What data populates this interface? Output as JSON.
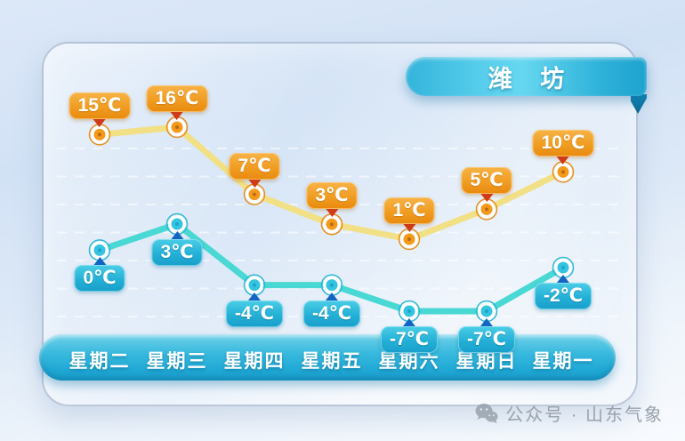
{
  "header": {
    "title": "潍 坊"
  },
  "chart_data": {
    "type": "line",
    "categories": [
      "星期二",
      "星期三",
      "星期四",
      "星期五",
      "星期六",
      "星期日",
      "星期一"
    ],
    "series": [
      {
        "name": "high-temperature",
        "values": [
          15,
          16,
          7,
          3,
          1,
          5,
          10
        ],
        "labels": [
          "15℃",
          "16℃",
          "7℃",
          "3℃",
          "1℃",
          "5℃",
          "10℃"
        ],
        "line_color": "#f2e086",
        "marker_color": "#f39a1d",
        "marker_dot_color": "#bb6a10",
        "marker_ring_color": "#e8901c",
        "label_style": "high"
      },
      {
        "name": "low-temperature",
        "values": [
          0,
          3,
          -4,
          -4,
          -7,
          -7,
          -2
        ],
        "labels": [
          "0℃",
          "3℃",
          "-4℃",
          "-4℃",
          "-7℃",
          "-7℃",
          "-2℃"
        ],
        "line_color": "#49d8d4",
        "marker_color": "#35c4e0",
        "marker_dot_color": "#1da5cc",
        "marker_ring_color": "#2eb8d8",
        "label_style": "low"
      }
    ],
    "unit": "℃",
    "grid": "dashed-horizontal",
    "legend": "none",
    "title": "潍 坊"
  },
  "footer": {
    "wechat_text": "公众号 · 山东气象"
  }
}
